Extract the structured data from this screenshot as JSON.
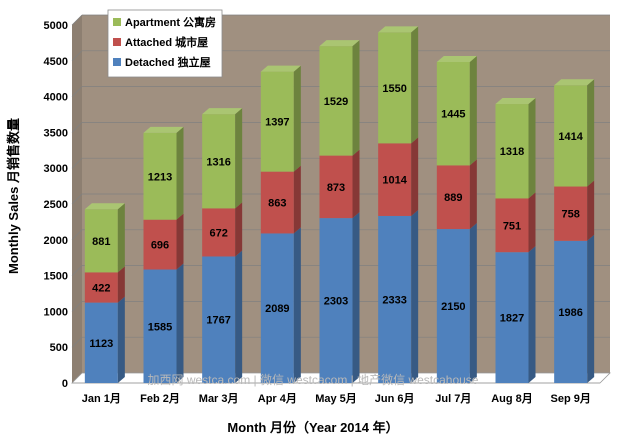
{
  "chart_data": {
    "type": "bar",
    "stacked": true,
    "categories": [
      "Jan 1月",
      "Feb 2月",
      "Mar 3月",
      "Apr 4月",
      "May 5月",
      "Jun 6月",
      "Jul 7月",
      "Aug 8月",
      "Sep 9月"
    ],
    "series": [
      {
        "name": "Detached 独立屋",
        "color": "#4f81bd",
        "values": [
          1123,
          1585,
          1767,
          2089,
          2303,
          2333,
          2150,
          1827,
          1986
        ]
      },
      {
        "name": "Attached 城市屋",
        "color": "#c0504d",
        "values": [
          422,
          696,
          672,
          863,
          873,
          1014,
          889,
          751,
          758
        ]
      },
      {
        "name": "Apartment 公寓房",
        "color": "#9bbb59",
        "values": [
          881,
          1213,
          1316,
          1397,
          1529,
          1550,
          1445,
          1318,
          1414
        ]
      }
    ],
    "title": "",
    "xlabel": "Month 月份（Year 2014 年）",
    "ylabel": "Monthly Sales 月销售数量",
    "ylim": [
      0,
      5000
    ],
    "yticks": [
      0,
      500,
      1000,
      1500,
      2000,
      2500,
      3000,
      3500,
      4000,
      4500,
      5000
    ],
    "grid": true,
    "legend_position": "top-left",
    "watermark": "加西网 westca.com | 微信 westcacom | 地产微信 westcahouse",
    "colors": {
      "back_wall": "#a09080",
      "floor": "#ffffff",
      "grid": "#808080"
    }
  }
}
